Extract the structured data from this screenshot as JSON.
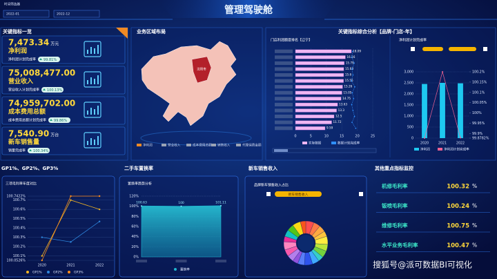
{
  "header": {
    "title": "管理驾驶舱",
    "filter_label": "时间筛选器",
    "start": "2022-01",
    "end": "2022-12"
  },
  "kpi_panel": {
    "title": "关键指标一览",
    "items": [
      {
        "value": "7,473.34",
        "unit": "万元",
        "name": "净利润",
        "rate_label": "净利润计划完成率",
        "rate": "99.81%"
      },
      {
        "value": "75,008,477.00",
        "unit": "",
        "name": "营业收入",
        "rate_label": "营业收入计划完成率",
        "rate": "100.13%"
      },
      {
        "value": "74,959,702.00",
        "unit": "",
        "name": "成本费用总额",
        "rate_label": "成本费用总额计划完成率",
        "rate": "99.86%"
      },
      {
        "value": "7,540.90",
        "unit": "万台",
        "name": "新车销售量",
        "rate_label": "销量完成率",
        "rate": "100.34%"
      }
    ]
  },
  "map_panel": {
    "title": "业务区域布局",
    "region_label": "沈阳市",
    "legend": [
      {
        "name": "净利润",
        "color": "#f08a24"
      },
      {
        "name": "营业收入",
        "color": "#9aa3b5"
      },
      {
        "name": "成本费用总额",
        "color": "#9aa3b5"
      },
      {
        "name": "销售收入",
        "color": "#9aa3b5"
      },
      {
        "name": "代理保费金额",
        "color": "#9aa3b5"
      }
    ]
  },
  "analysis_panel": {
    "title": "关键指标综合分析【品牌-门店-年】"
  },
  "panels": {
    "gp": "GP1%、GP2%、GP3%",
    "used": "二手车置换率",
    "new": "新车销售收入",
    "monitor": "其他重点指标监控"
  },
  "chart_data": [
    {
      "type": "bar",
      "orientation": "horizontal",
      "title": "门店利润额度排名【辽宁】",
      "categories": [
        null,
        null,
        null,
        null,
        null,
        null,
        null,
        null,
        null,
        null,
        null,
        null,
        null,
        null
      ],
      "series": [
        {
          "name": "实际数据",
          "color": "#efb6f2",
          "values": [
            18.09,
            16.16,
            15.79,
            15.63,
            15.6,
            15.55,
            15.26,
            15.05,
            14.75,
            13.63,
            13.3,
            12.5,
            11.72,
            9.59
          ]
        },
        {
          "name": "数据计划完成率",
          "color": "#2f8fff",
          "values": [
            18.5,
            18.2,
            19,
            18.3,
            18.6,
            18.1,
            19.2,
            18.4,
            18.8,
            18.2,
            18.6,
            19.1,
            18.3,
            19.5
          ]
        }
      ],
      "xlim": [
        0,
        25
      ],
      "xticks": [
        0,
        5,
        10,
        15,
        20,
        25
      ],
      "grid": true
    },
    {
      "type": "bar",
      "title": "净利润计划完成率",
      "categories": [
        "2020",
        "2021",
        "2022"
      ],
      "series": [
        {
          "name": "净利润",
          "color": "#1ec8f0",
          "values": [
            2450,
            2500,
            2480
          ]
        },
        {
          "name": "净利润计划完成率",
          "color": "#f06292",
          "axis": "y2",
          "values": [
            99.8782,
            100.2,
            99.88
          ]
        }
      ],
      "ylim": [
        0,
        3000
      ],
      "yticks": [
        0,
        500,
        {
          "value": 1000,
          "label": "1,000"
        },
        {
          "value": 1500,
          "label": "1,500"
        },
        {
          "value": 2000,
          "label": "2,000"
        },
        {
          "value": 2500,
          "label": "2,500"
        },
        {
          "value": 3000,
          "label": "3,000"
        }
      ],
      "y2lim": [
        99.8782,
        100.2
      ],
      "y2ticks": [
        {
          "value": 99.8782,
          "label": "99.8782%"
        },
        {
          "value": 99.9,
          "label": "99.9%"
        },
        {
          "value": 99.95,
          "label": "99.95%"
        },
        {
          "value": 100,
          "label": "100%"
        },
        {
          "value": 100.05,
          "label": "100.05%"
        },
        {
          "value": 100.1,
          "label": "100.1%"
        },
        {
          "value": 100.15,
          "label": "100.15%"
        },
        {
          "value": 100.2,
          "label": "100.2%"
        }
      ],
      "grid": true
    },
    {
      "type": "line",
      "title": "三项毛利率年度对比",
      "categories": [
        "2020",
        "2021",
        "2022"
      ],
      "series": [
        {
          "name": "GP1%",
          "color": "#f5b623",
          "values": [
            100.1,
            100.7,
            100.6
          ]
        },
        {
          "name": "GP2%",
          "color": "#2e86de",
          "values": [
            100.3,
            100.25,
            100.47
          ]
        },
        {
          "name": "GP3%",
          "color": "#ff8c1a",
          "values": [
            100.0526,
            100.7422,
            100.7422
          ]
        }
      ],
      "ylim": [
        100.0526,
        100.7422
      ],
      "yticks": [
        {
          "value": 100.0526,
          "label": "100.0526%"
        },
        {
          "value": 100.1,
          "label": "100.1%"
        },
        {
          "value": 100.2,
          "label": "100.2%"
        },
        {
          "value": 100.3,
          "label": "100.3%"
        },
        {
          "value": 100.4,
          "label": "100.4%"
        },
        {
          "value": 100.5,
          "label": "100.5%"
        },
        {
          "value": 100.6,
          "label": "100.6%"
        },
        {
          "value": 100.7,
          "label": "100.7%"
        },
        {
          "value": 100.7422,
          "label": "100.7422%"
        }
      ],
      "grid": true
    },
    {
      "type": "area",
      "title": "置换率趋势分析",
      "categories": [
        null,
        null,
        null
      ],
      "series": [
        {
          "name": "置换率",
          "color": "#1fb5cf",
          "values": [
            100.63,
            100,
            101.11
          ]
        }
      ],
      "ylim": [
        0,
        120
      ],
      "yticks": [
        {
          "value": 0,
          "label": "0%"
        },
        {
          "value": 20,
          "label": "20%"
        },
        {
          "value": 40,
          "label": "40%"
        },
        {
          "value": 60,
          "label": "60%"
        },
        {
          "value": 80,
          "label": "80%"
        },
        {
          "value": 100,
          "label": "100%"
        },
        {
          "value": 120,
          "label": "120%"
        }
      ],
      "grid": true
    },
    {
      "type": "pie",
      "title": "品牌新车销售收入占比",
      "name": "新车销售收入",
      "categories": [
        null,
        null,
        null,
        null,
        null,
        null,
        null,
        null,
        null,
        null,
        null,
        null,
        null,
        null,
        null,
        null,
        null,
        null,
        null,
        null
      ],
      "values": [
        6,
        5,
        5,
        4,
        6,
        5,
        5,
        4,
        5,
        6,
        5,
        4,
        5,
        5,
        6,
        4,
        5,
        5,
        6,
        4
      ],
      "colors": [
        "#ff4d4f",
        "#ff7a45",
        "#ffa940",
        "#ffc53d",
        "#ffec3d",
        "#bae637",
        "#73d13d",
        "#36cfc9",
        "#40a9ff",
        "#2f54eb",
        "#597ef7",
        "#9254de",
        "#b37feb",
        "#f759ab",
        "#ff85c0",
        "#eb2f96",
        "#13c2c2",
        "#52c41a",
        "#fadb14",
        "#fa541c"
      ]
    }
  ],
  "monitor": [
    {
      "name": "机修毛利率",
      "value": "100.32",
      "unit": "%"
    },
    {
      "name": "钣喷毛利率",
      "value": "100.24",
      "unit": "%"
    },
    {
      "name": "维修毛利率",
      "value": "100.75",
      "unit": "%"
    },
    {
      "name": "水平业务毛利率",
      "value": "100.47",
      "unit": "%"
    }
  ],
  "watermark": "搜狐号@派可数据BI可视化"
}
